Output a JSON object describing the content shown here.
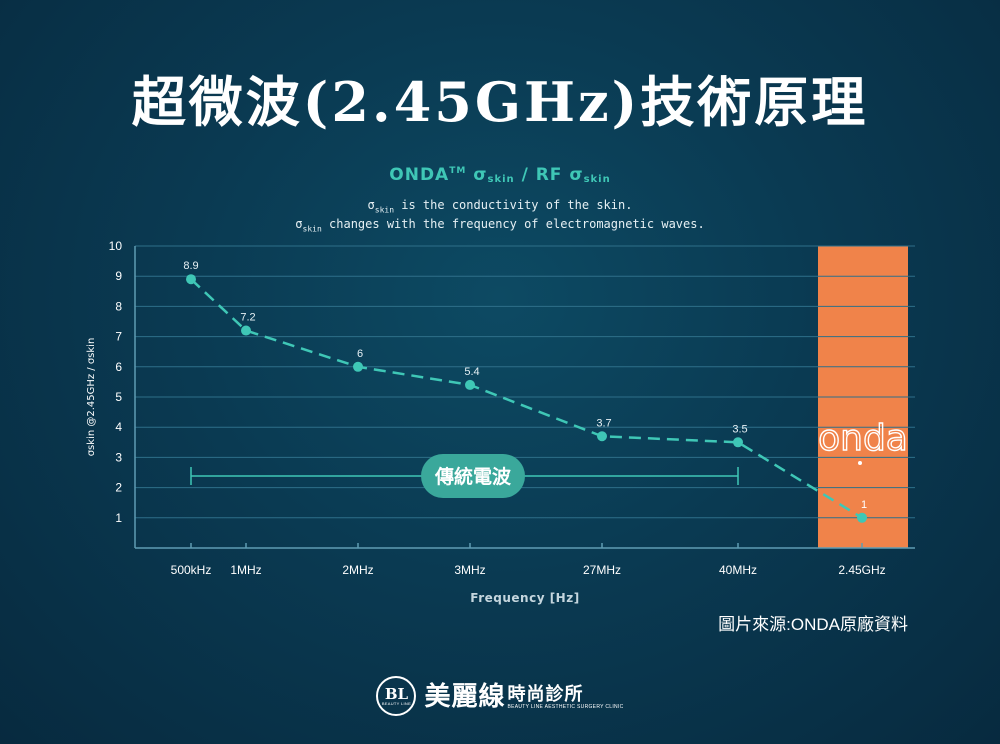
{
  "title": "超微波(2.45GHz)技術原理",
  "heading": {
    "onda": "ONDA",
    "tm": "TM",
    "sigma": "σ",
    "skin": "skin",
    "sep": " / RF "
  },
  "note": {
    "line1": " is the conductivity of the skin.",
    "line2": " changes with the frequency of electromagnetic waves."
  },
  "source": "圖片來源:ONDA原廠資料",
  "footer": {
    "logo_letters": "BL",
    "logo_sub": "BEAUTY LINE",
    "brand_main": "美麗線",
    "brand_side": "時尚診所",
    "brand_en": "BEAUTY LINE AESTHETIC SURGERY CLINIC"
  },
  "colors": {
    "accent": "#3fc7b6",
    "highlight": "#f0834a",
    "grid": "#2e6f89"
  },
  "chart_data": {
    "type": "line",
    "categories": [
      "500kHz",
      "1MHz",
      "2MHz",
      "3MHz",
      "27MHz",
      "40MHz",
      "2.45GHz"
    ],
    "values": [
      8.9,
      7.2,
      6,
      5.4,
      3.7,
      3.5,
      1
    ],
    "value_labels": [
      "8.9",
      "7.2",
      "6",
      "5.4",
      "3.7",
      "3.5",
      "1"
    ],
    "y_ticks": [
      "1",
      "2",
      "3",
      "4",
      "5",
      "6",
      "7",
      "8",
      "9",
      "10"
    ],
    "ylim": [
      0,
      10
    ],
    "xlabel": "Frequency [Hz]",
    "ylabel": "σskin @2.45GHz / σskin",
    "grid": true,
    "highlight_category": "2.45GHz",
    "highlight_label": "onda",
    "range_bracket": {
      "from": "500kHz",
      "to": "40MHz",
      "label": "傳統電波"
    }
  }
}
